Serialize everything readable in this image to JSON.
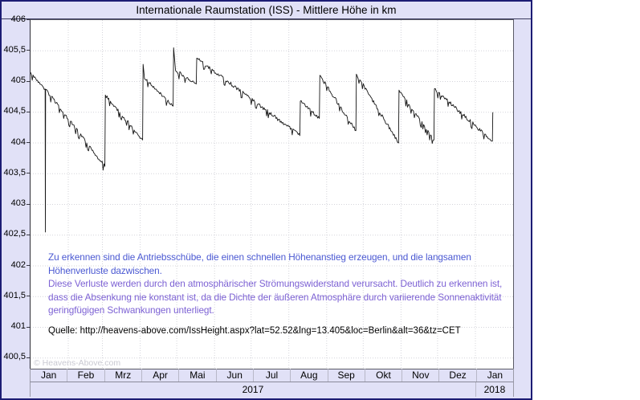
{
  "chart_data": {
    "type": "line",
    "title": "Internationale Raumstation (ISS) - Mittlere Höhe in km",
    "xlabel": "",
    "ylabel": "",
    "ylim": [
      400.5,
      406
    ],
    "grid": true,
    "yticks": [
      "406",
      "405,5",
      "405",
      "404,5",
      "404",
      "403,5",
      "403",
      "402,5",
      "402",
      "401,5",
      "401",
      "400,5"
    ],
    "ytick_values": [
      406,
      405.5,
      405,
      404.5,
      404,
      403.5,
      403,
      402.5,
      402,
      401.5,
      401,
      400.5
    ],
    "months": [
      "Jan",
      "Feb",
      "Mrz",
      "Apr",
      "Mai",
      "Jun",
      "Jul",
      "Aug",
      "Sep",
      "Okt",
      "Nov",
      "Dez",
      "Jan"
    ],
    "month_start_days": [
      31,
      59,
      90,
      120,
      151,
      181,
      212,
      243,
      273,
      304,
      334,
      365
    ],
    "total_days": 396,
    "years": [
      {
        "label": "2017",
        "span": 12
      },
      {
        "label": "2018",
        "span": 1
      }
    ],
    "watermark": "© Heavens-Above.com",
    "series": [
      {
        "name": "ISS mittlere Höhe in km",
        "color": "#151515",
        "segments": [
          [
            0,
            405.15,
            12,
            404.88,
            1
          ],
          [
            12,
            404.88,
            12.2,
            402.55,
            0
          ],
          [
            12.2,
            402.55,
            12.4,
            404.87,
            0
          ],
          [
            12.4,
            404.87,
            61,
            403.62,
            1
          ],
          [
            61.4,
            404.78,
            92,
            404.05,
            1
          ],
          [
            92.4,
            405.28,
            93.5,
            405.05,
            0
          ],
          [
            93.5,
            405.05,
            117,
            404.6,
            1
          ],
          [
            117.4,
            405.55,
            119,
            405.18,
            0
          ],
          [
            119,
            405.18,
            136,
            404.96,
            1
          ],
          [
            136.4,
            405.38,
            221,
            404.12,
            1
          ],
          [
            221.4,
            404.68,
            237,
            404.4,
            1
          ],
          [
            237.4,
            405.1,
            267,
            404.2,
            1
          ],
          [
            267.4,
            405.12,
            302,
            404.0,
            1
          ],
          [
            302.4,
            404.86,
            331,
            404.05,
            1
          ],
          [
            331.4,
            404.88,
            379,
            404.03,
            1
          ],
          [
            379,
            404.03,
            379.3,
            404.5,
            0
          ]
        ]
      }
    ]
  },
  "annotation": {
    "lines": [
      {
        "text": "Zu erkennen sind die Antriebsschübe, die einen schnellen Höhenanstieg erzeugen, und die langsamen",
        "color": "#4a58d2"
      },
      {
        "text": "Höhenverluste dazwischen.",
        "color": "#4a58d2"
      },
      {
        "text": "Diese Verluste werden durch den atmosphärischer Strömungswiderstand verursacht. Deutlich zu erkennen ist,",
        "color": "#7d62d4"
      },
      {
        "text": "dass die Absenkung nie konstant ist, da die Dichte der äußeren Atmosphäre durch variierende Sonnenaktivität",
        "color": "#7d62d4"
      },
      {
        "text": "geringfügigen Schwankungen unterliegt.",
        "color": "#7d62d4"
      }
    ],
    "source": "Quelle: http://heavens-above.com/IssHeight.aspx?lat=52.52&lng=13.405&loc=Berlin&alt=36&tz=CET"
  },
  "colors": {
    "background": "#e1e1f7",
    "frame": "#1c1c74",
    "plot_bg": "#ffffff",
    "gridline": "#d4d4da",
    "curve": "#151515",
    "annotation_blue": "#4a58d2",
    "annotation_purple": "#7d62d4",
    "watermark": "#c9c9d2"
  }
}
